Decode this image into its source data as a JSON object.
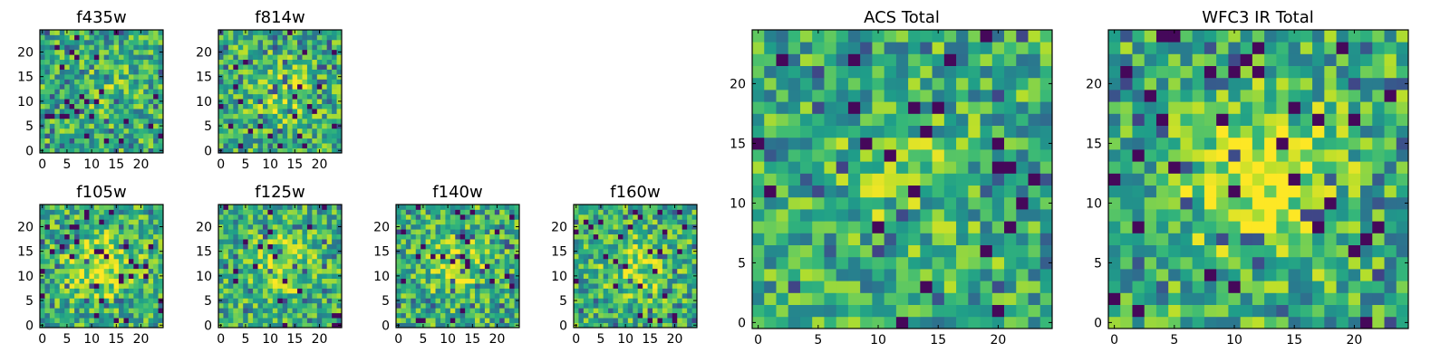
{
  "chart_data": [
    {
      "type": "heatmap",
      "title": "f435w",
      "x_ticks": [
        "0",
        "5",
        "10",
        "15",
        "20"
      ],
      "y_ticks": [
        "0",
        "5",
        "10",
        "15",
        "20"
      ],
      "xlim": [
        -0.5,
        24.5
      ],
      "ylim": [
        -0.5,
        24.5
      ],
      "grid_size": 25,
      "colormap": "viridis",
      "seed": 11,
      "blob": 0.1
    },
    {
      "type": "heatmap",
      "title": "f814w",
      "x_ticks": [
        "0",
        "5",
        "10",
        "15",
        "20"
      ],
      "y_ticks": [
        "0",
        "5",
        "10",
        "15",
        "20"
      ],
      "xlim": [
        -0.5,
        24.5
      ],
      "ylim": [
        -0.5,
        24.5
      ],
      "grid_size": 25,
      "colormap": "viridis",
      "seed": 23,
      "blob": 0.2
    },
    {
      "type": "heatmap",
      "title": "f105w",
      "x_ticks": [
        "0",
        "5",
        "10",
        "15",
        "20"
      ],
      "y_ticks": [
        "0",
        "5",
        "10",
        "15",
        "20"
      ],
      "xlim": [
        -0.5,
        24.5
      ],
      "ylim": [
        -0.5,
        24.5
      ],
      "grid_size": 25,
      "colormap": "viridis",
      "seed": 37,
      "blob": 0.35
    },
    {
      "type": "heatmap",
      "title": "f125w",
      "x_ticks": [
        "0",
        "5",
        "10",
        "15",
        "20"
      ],
      "y_ticks": [
        "0",
        "5",
        "10",
        "15",
        "20"
      ],
      "xlim": [
        -0.5,
        24.5
      ],
      "ylim": [
        -0.5,
        24.5
      ],
      "grid_size": 25,
      "colormap": "viridis",
      "seed": 41,
      "blob": 0.25
    },
    {
      "type": "heatmap",
      "title": "f140w",
      "x_ticks": [
        "0",
        "5",
        "10",
        "15",
        "20"
      ],
      "y_ticks": [
        "0",
        "5",
        "10",
        "15",
        "20"
      ],
      "xlim": [
        -0.5,
        24.5
      ],
      "ylim": [
        -0.5,
        24.5
      ],
      "grid_size": 25,
      "colormap": "viridis",
      "seed": 53,
      "blob": 0.25
    },
    {
      "type": "heatmap",
      "title": "f160w",
      "x_ticks": [
        "0",
        "5",
        "10",
        "15",
        "20"
      ],
      "y_ticks": [
        "0",
        "5",
        "10",
        "15",
        "20"
      ],
      "xlim": [
        -0.5,
        24.5
      ],
      "ylim": [
        -0.5,
        24.5
      ],
      "grid_size": 25,
      "colormap": "viridis",
      "seed": 67,
      "blob": 0.25
    },
    {
      "type": "heatmap",
      "title": "ACS Total",
      "x_ticks": [
        "0",
        "5",
        "10",
        "15",
        "20"
      ],
      "y_ticks": [
        "0",
        "5",
        "10",
        "15",
        "20"
      ],
      "xlim": [
        -0.5,
        24.5
      ],
      "ylim": [
        -0.5,
        24.5
      ],
      "grid_size": 25,
      "colormap": "viridis",
      "seed": 71,
      "blob": 0.1
    },
    {
      "type": "heatmap",
      "title": "WFC3 IR Total",
      "x_ticks": [
        "0",
        "5",
        "10",
        "15",
        "20"
      ],
      "y_ticks": [
        "0",
        "5",
        "10",
        "15",
        "20"
      ],
      "xlim": [
        -0.5,
        24.5
      ],
      "ylim": [
        -0.5,
        24.5
      ],
      "grid_size": 25,
      "colormap": "viridis",
      "seed": 89,
      "blob": 0.35
    }
  ]
}
